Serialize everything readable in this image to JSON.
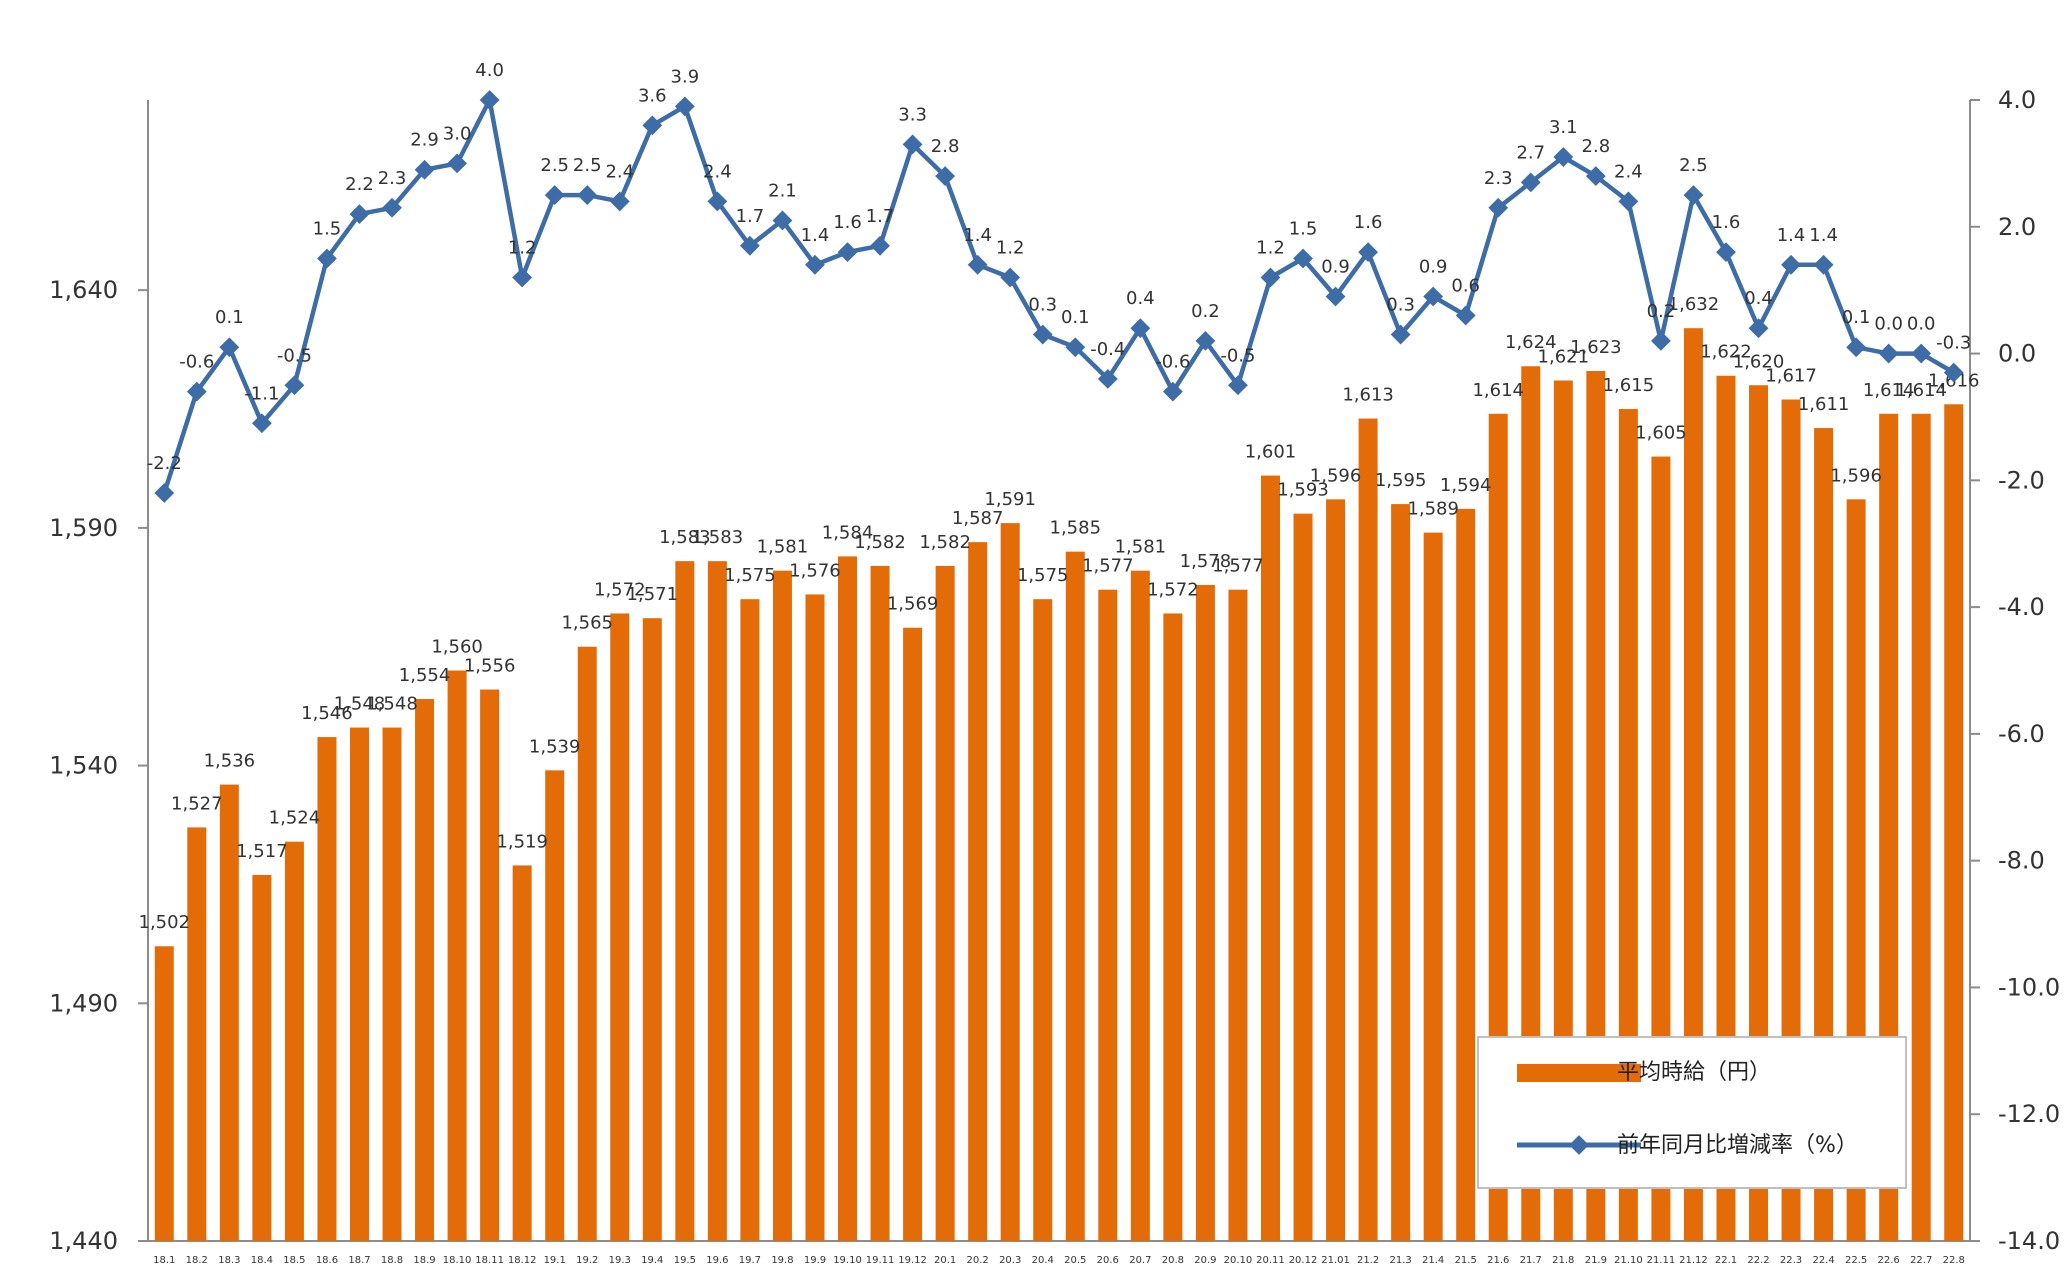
{
  "chart_data": {
    "type": "bar+line",
    "title": "",
    "categories": [
      "18.1",
      "18.2",
      "18.3",
      "18.4",
      "18.5",
      "18.6",
      "18.7",
      "18.8",
      "18.9",
      "18.10",
      "18.11",
      "18.12",
      "19.1",
      "19.2",
      "19.3",
      "19.4",
      "19.5",
      "19.6",
      "19.7",
      "19.8",
      "19.9",
      "19.10",
      "19.11",
      "19.12",
      "20.1",
      "20.2",
      "20.3",
      "20.4",
      "20.5",
      "20.6",
      "20.7",
      "20.8",
      "20.9",
      "20.10",
      "20.11",
      "20.12",
      "21.01",
      "21.2",
      "21.3",
      "21.4",
      "21.5",
      "21.6",
      "21.7",
      "21.8",
      "21.9",
      "21.10",
      "21.11",
      "21.12",
      "22.1",
      "22.2",
      "22.3",
      "22.4",
      "22.5",
      "22.6",
      "22.7",
      "22.8"
    ],
    "series": [
      {
        "name": "平均時給（円）",
        "type": "bar",
        "axis": "left",
        "color": "#E36C09",
        "values": [
          1502,
          1527,
          1536,
          1517,
          1524,
          1546,
          1548,
          1548,
          1554,
          1560,
          1556,
          1519,
          1539,
          1565,
          1572,
          1571,
          1583,
          1583,
          1575,
          1581,
          1576,
          1584,
          1582,
          1569,
          1582,
          1587,
          1591,
          1575,
          1585,
          1577,
          1581,
          1572,
          1578,
          1577,
          1601,
          1593,
          1596,
          1613,
          1595,
          1589,
          1594,
          1614,
          1624,
          1621,
          1623,
          1615,
          1605,
          1632,
          1622,
          1620,
          1617,
          1611,
          1596,
          1614,
          1614,
          1616
        ],
        "labels": [
          "1,502",
          "1,527",
          "1,536",
          "1,517",
          "1,524",
          "1,546",
          "1,548",
          "1,548",
          "1,554",
          "1,560",
          "1,556",
          "1,519",
          "1,539",
          "1,565",
          "1,572",
          "1,571",
          "1,583",
          "1,583",
          "1,575",
          "1,581",
          "1,576",
          "1,584",
          "1,582",
          "1,569",
          "1,582",
          "1,587",
          "1,591",
          "1,575",
          "1,585",
          "1,577",
          "1,581",
          "1,572",
          "1,578",
          "1,577",
          "1,601",
          "1,593",
          "1,596",
          "1,613",
          "1,595",
          "1,589",
          "1,594",
          "1,614",
          "1,624",
          "1,621",
          "1,623",
          "1,615",
          "1,605",
          "1,632",
          "1,622",
          "1,620",
          "1,617",
          "1,611",
          "1,596",
          "1,614",
          "1,614",
          "1,616"
        ]
      },
      {
        "name": "前年同月比増減率（%）",
        "type": "line",
        "axis": "right",
        "color": "#3E6CA6",
        "negative_label_color": "#FF0000",
        "values": [
          -2.2,
          -0.6,
          0.1,
          -1.1,
          -0.5,
          1.5,
          2.2,
          2.3,
          2.9,
          3.0,
          4.0,
          1.2,
          2.5,
          2.5,
          2.4,
          3.6,
          3.9,
          2.4,
          1.7,
          2.1,
          1.4,
          1.6,
          1.7,
          3.3,
          2.8,
          1.4,
          1.2,
          0.3,
          0.1,
          -0.4,
          0.4,
          -0.6,
          0.2,
          -0.5,
          1.2,
          1.5,
          0.9,
          1.6,
          0.3,
          0.9,
          0.6,
          2.3,
          2.7,
          3.1,
          2.8,
          2.4,
          0.2,
          2.5,
          1.6,
          0.4,
          1.4,
          1.4,
          0.1,
          0.0,
          0.0,
          -0.3
        ],
        "labels": [
          "-2.2",
          "-0.6",
          "0.1",
          "-1.1",
          "-0.5",
          "1.5",
          "2.2",
          "2.3",
          "2.9",
          "3.0",
          "4.0",
          "1.2",
          "2.5",
          "2.5",
          "2.4",
          "3.6",
          "3.9",
          "2.4",
          "1.7",
          "2.1",
          "1.4",
          "1.6",
          "1.7",
          "3.3",
          "2.8",
          "1.4",
          "1.2",
          "0.3",
          "0.1",
          "-0.4",
          "0.4",
          "-0.6",
          "0.2",
          "-0.5",
          "1.2",
          "1.5",
          "0.9",
          "1.6",
          "0.3",
          "0.9",
          "0.6",
          "2.3",
          "2.7",
          "3.1",
          "2.8",
          "2.4",
          "0.2",
          "2.5",
          "1.6",
          "0.4",
          "1.4",
          "1.4",
          "0.1",
          "0.0",
          "0.0",
          "-0.3"
        ]
      }
    ],
    "y_left": {
      "ylim": [
        1440,
        1680
      ],
      "ticks": [
        "1,440",
        "1,490",
        "1,540",
        "1,590",
        "1,640"
      ],
      "tick_values": [
        1440,
        1490,
        1540,
        1590,
        1640
      ]
    },
    "y_right": {
      "ylim": [
        -14,
        4
      ],
      "ticks": [
        "4.0",
        "2.0",
        "0.0",
        "-2.0",
        "-4.0",
        "-6.0",
        "-8.0",
        "-10.0",
        "-12.0",
        "-14.0"
      ],
      "tick_values": [
        4,
        2,
        0,
        -2,
        -4,
        -6,
        -8,
        -10,
        -12,
        -14
      ]
    },
    "grid": false,
    "legend_position": "bottom-right"
  }
}
